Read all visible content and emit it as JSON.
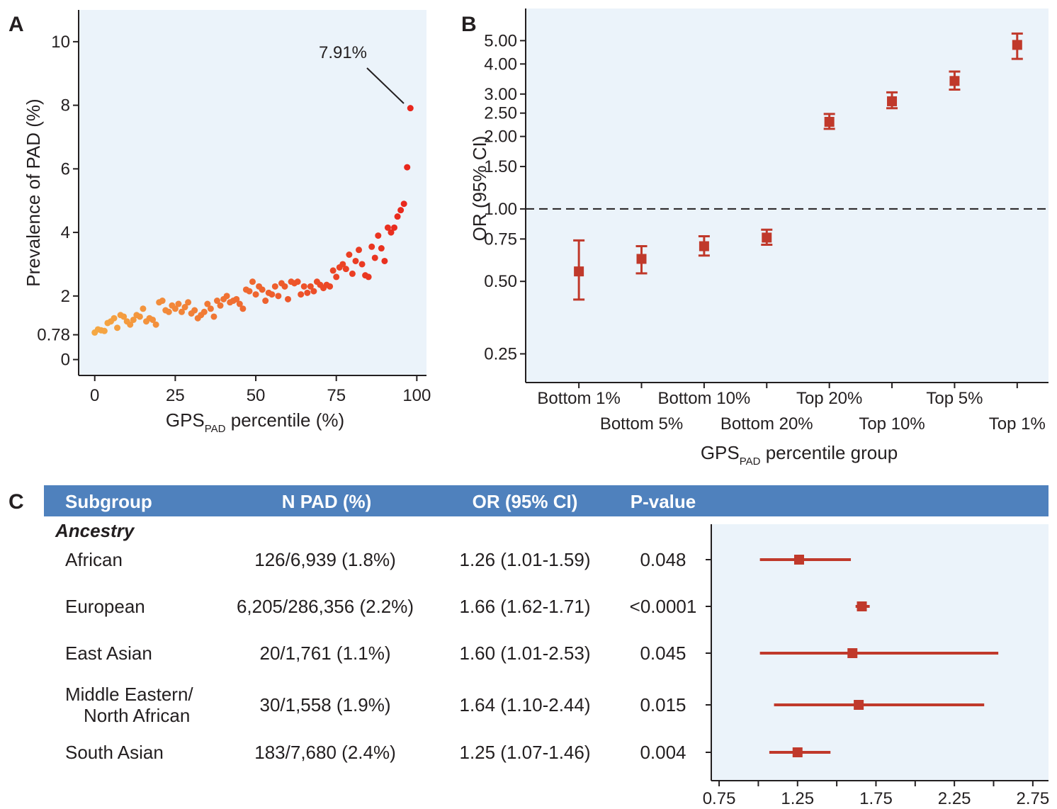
{
  "panels": {
    "a": "A",
    "b": "B",
    "c": "C"
  },
  "colors": {
    "panel_bg": "#ebf3fa",
    "marker": "#c0392b",
    "header_bg": "#4f81bd",
    "scatter_low": "#f5a843",
    "scatter_high": "#e8231b"
  },
  "chart_data": [
    {
      "type": "scatter",
      "panel": "A",
      "ylabel": "Prevalence of PAD (%)",
      "xlabel_main": "GPS",
      "xlabel_sub": "PAD",
      "xlabel_rest": " percentile (%)",
      "xlim": [
        -5,
        103
      ],
      "ylim": [
        -0.5,
        11
      ],
      "xticks": [
        "0",
        "25",
        "50",
        "75",
        "100"
      ],
      "yticks": [
        "0",
        "0.78",
        "2",
        "4",
        "6",
        "8",
        "10"
      ],
      "annotation": "7.91%",
      "x": [
        0,
        1,
        2,
        3,
        4,
        5,
        6,
        7,
        8,
        9,
        10,
        11,
        12,
        13,
        14,
        15,
        16,
        17,
        18,
        19,
        20,
        21,
        22,
        23,
        24,
        25,
        26,
        27,
        28,
        29,
        30,
        31,
        32,
        33,
        34,
        35,
        36,
        37,
        38,
        39,
        40,
        41,
        42,
        43,
        44,
        45,
        46,
        47,
        48,
        49,
        50,
        51,
        52,
        53,
        54,
        55,
        56,
        57,
        58,
        59,
        60,
        61,
        62,
        63,
        64,
        65,
        66,
        67,
        68,
        69,
        70,
        71,
        72,
        73,
        74,
        75,
        76,
        77,
        78,
        79,
        80,
        81,
        82,
        83,
        84,
        85,
        86,
        87,
        88,
        89,
        90,
        91,
        92,
        93,
        94,
        95,
        96,
        97,
        98
      ],
      "y": [
        0.85,
        0.95,
        0.92,
        0.9,
        1.15,
        1.2,
        1.3,
        1.0,
        1.4,
        1.35,
        1.2,
        1.1,
        1.25,
        1.4,
        1.35,
        1.6,
        1.2,
        1.3,
        1.25,
        1.1,
        1.8,
        1.85,
        1.55,
        1.5,
        1.7,
        1.6,
        1.75,
        1.5,
        1.65,
        1.8,
        1.45,
        1.55,
        1.3,
        1.4,
        1.5,
        1.75,
        1.6,
        1.35,
        1.85,
        1.7,
        1.9,
        2.0,
        1.8,
        1.85,
        1.9,
        1.75,
        1.6,
        2.2,
        2.15,
        2.45,
        2.05,
        2.3,
        2.2,
        1.85,
        2.1,
        2.05,
        2.3,
        2.0,
        2.4,
        2.3,
        1.9,
        2.45,
        2.4,
        2.45,
        2.05,
        2.3,
        2.1,
        2.3,
        2.15,
        2.45,
        2.35,
        2.25,
        2.35,
        2.3,
        2.8,
        2.6,
        2.9,
        3.0,
        2.85,
        3.3,
        2.7,
        3.1,
        3.45,
        3.0,
        2.65,
        2.6,
        3.55,
        3.2,
        3.9,
        3.5,
        3.1,
        4.15,
        4.0,
        4.15,
        4.5,
        4.7,
        4.9,
        6.05,
        7.91
      ]
    },
    {
      "type": "scatter",
      "panel": "B",
      "ylabel": "OR (95% CI)",
      "xlabel_main": "GPS",
      "xlabel_sub": "PAD",
      "xlabel_rest": " percentile group",
      "yscale": "log",
      "reference_line": 1.0,
      "yticks": [
        "0.25",
        "0.50",
        "0.75",
        "1.00",
        "1.50",
        "2.00",
        "2.50",
        "3.00",
        "4.00",
        "5.00"
      ],
      "categories": [
        "Bottom 1%",
        "Bottom 5%",
        "Bottom 10%",
        "Bottom 20%",
        "Top 20%",
        "Top 10%",
        "Top 5%",
        "Top 1%"
      ],
      "or": [
        0.55,
        0.62,
        0.7,
        0.76,
        2.3,
        2.8,
        3.4,
        4.8
      ],
      "ci_low": [
        0.42,
        0.54,
        0.64,
        0.71,
        2.15,
        2.62,
        3.13,
        4.2
      ],
      "ci_high": [
        0.74,
        0.7,
        0.77,
        0.82,
        2.48,
        3.05,
        3.72,
        5.35
      ]
    },
    {
      "type": "table",
      "panel": "C",
      "headers": [
        "Subgroup",
        "N PAD (%)",
        "OR (95% CI)",
        "P-value"
      ],
      "section": "Ancestry",
      "rows": [
        {
          "subgroup": [
            "African"
          ],
          "n": "126/6,939 (1.8%)",
          "or_text": "1.26 (1.01-1.59)",
          "p": "0.048",
          "or": 1.26,
          "lo": 1.01,
          "hi": 1.59
        },
        {
          "subgroup": [
            "European"
          ],
          "n": "6,205/286,356 (2.2%)",
          "or_text": "1.66 (1.62-1.71)",
          "p": "<0.0001",
          "or": 1.66,
          "lo": 1.62,
          "hi": 1.71
        },
        {
          "subgroup": [
            "East Asian"
          ],
          "n": "20/1,761 (1.1%)",
          "or_text": "1.60 (1.01-2.53)",
          "p": "0.045",
          "or": 1.6,
          "lo": 1.01,
          "hi": 2.53
        },
        {
          "subgroup": [
            "Middle Eastern/",
            "North African"
          ],
          "n": "30/1,558 (1.9%)",
          "or_text": "1.64 (1.10-2.44)",
          "p": "0.015",
          "or": 1.64,
          "lo": 1.1,
          "hi": 2.44
        },
        {
          "subgroup": [
            "South Asian"
          ],
          "n": "183/7,680 (2.4%)",
          "or_text": "1.25 (1.07-1.46)",
          "p": "0.004",
          "or": 1.25,
          "lo": 1.07,
          "hi": 1.46
        }
      ],
      "forest_xticks": [
        "0.75",
        "1.25",
        "1.75",
        "2.25",
        "2.75"
      ],
      "forest_xlim": [
        0.7,
        2.85
      ]
    }
  ]
}
